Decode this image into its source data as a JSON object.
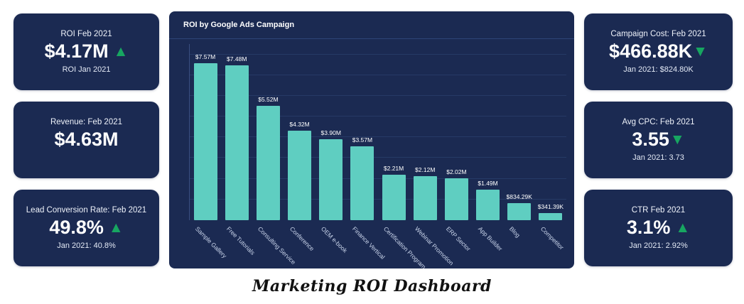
{
  "dashboard_title": "Marketing ROI Dashboard",
  "colors": {
    "card_bg": "#1B2A52",
    "panel_bg": "#1B2A52",
    "bar": "#5FCEC1",
    "trend_green": "#17A661",
    "grid_line": "#263A66",
    "divider": "#2E4577",
    "page_bg": "#FFFFFF",
    "text_primary": "#FFFFFF"
  },
  "kpi_cards": {
    "left": [
      {
        "label": "ROI Feb 2021",
        "value": "$4.17M",
        "trend": "up",
        "sub": "ROI Jan 2021"
      },
      {
        "label": "Revenue: Feb 2021",
        "value": "$4.63M",
        "trend": "none",
        "sub": ""
      },
      {
        "label": "Lead Conversion Rate: Feb 2021",
        "value": "49.8%",
        "trend": "up",
        "sub": "Jan 2021: 40.8%"
      }
    ],
    "right": [
      {
        "label": "Campaign Cost: Feb 2021",
        "value": "$466.88K",
        "trend": "down",
        "sub": "Jan 2021: $824.80K"
      },
      {
        "label": "Avg CPC: Feb 2021",
        "value": "3.55",
        "trend": "down",
        "sub": "Jan 2021: 3.73"
      },
      {
        "label": "CTR Feb 2021",
        "value": "3.1%",
        "trend": "up",
        "sub": "Jan 2021: 2.92%"
      }
    ]
  },
  "chart_data": {
    "type": "bar",
    "title": "ROI by Google Ads Campaign",
    "categories": [
      "Sample Gallery",
      "Free Tutorials",
      "Consulting Service",
      "Conference",
      "OEM e-book",
      "Finance Vertical",
      "Certification Program",
      "Webinar Promotion",
      "ERP Sector",
      "App Builder",
      "Blog",
      "Competitor"
    ],
    "values": [
      7.57,
      7.48,
      5.52,
      4.32,
      3.9,
      3.57,
      2.21,
      2.12,
      2.02,
      1.49,
      0.83429,
      0.34139
    ],
    "value_labels": [
      "$7.57M",
      "$7.48M",
      "$5.52M",
      "$4.32M",
      "$3.90M",
      "$3.57M",
      "$2.21M",
      "$2.12M",
      "$2.02M",
      "$1.49M",
      "$834.29K",
      "$341.39K"
    ],
    "xlabel": "",
    "ylabel": "",
    "ylim": [
      0,
      8.5
    ],
    "grid": true,
    "legend_position": "none",
    "bar_color": "#5FCEC1"
  }
}
